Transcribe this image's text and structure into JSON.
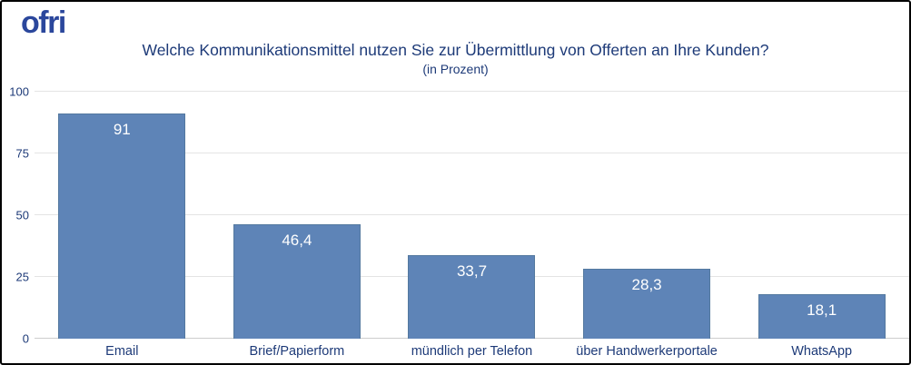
{
  "logo": {
    "text": "ofri"
  },
  "header": {
    "title": "Welche Kommunikationsmittel nutzen Sie zur Übermittlung von Offerten an Ihre Kunden?",
    "subtitle": "(in Prozent)"
  },
  "chart_data": {
    "type": "bar",
    "title": "Welche Kommunikationsmittel nutzen Sie zur Übermittlung von Offerten an Ihre Kunden?",
    "subtitle": "(in Prozent)",
    "categories": [
      "Email",
      "Brief/Papierform",
      "mündlich per Telefon",
      "über Handwerkerportale",
      "WhatsApp"
    ],
    "values": [
      91,
      46.4,
      33.7,
      28.3,
      18.1
    ],
    "value_labels": [
      "91",
      "46,4",
      "33,7",
      "28,3",
      "18,1"
    ],
    "xlabel": "",
    "ylabel": "",
    "ylim": [
      0,
      100
    ],
    "yticks": [
      0,
      25,
      50,
      75,
      100
    ],
    "grid": true,
    "legend": false,
    "bar_color": "#5e84b7",
    "value_label_color": "#ffffff",
    "axis_text_color": "#1d3a78",
    "gridline_color": "#e4e4e4",
    "logo_color": "#2b479c"
  }
}
